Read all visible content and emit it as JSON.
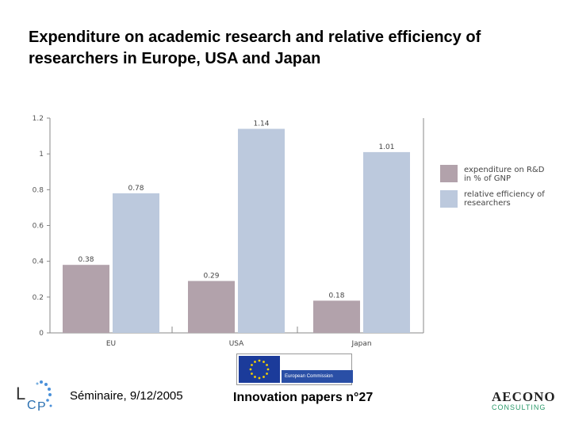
{
  "title": "Expenditure on academic research and relative efficiency of researchers in Europe, USA and Japan",
  "chart_data": {
    "type": "bar",
    "categories": [
      "EU",
      "USA",
      "Japan"
    ],
    "series": [
      {
        "name": "expenditure on R&D in % of GNP",
        "values": [
          0.38,
          0.29,
          0.18
        ],
        "value_labels": [
          "0.38",
          "0.29",
          "0.18"
        ],
        "color": "#b2a2ab"
      },
      {
        "name": "relative efficiency of researchers",
        "values": [
          0.78,
          1.14,
          1.01
        ],
        "value_labels": [
          "0.78",
          "1.14",
          "1.01"
        ],
        "color": "#bcc9dd"
      }
    ],
    "yticks": [
      "0",
      "0.2",
      "0.4",
      "0.6",
      "0.8",
      "1",
      "1.2"
    ],
    "ylim": [
      0,
      1.2
    ],
    "legend_position": "right",
    "legend": {
      "series1": [
        "expenditure on R&D",
        "in % of GNP"
      ],
      "series2": [
        "relative efficiency of",
        "researchers"
      ]
    },
    "grid": false
  },
  "footer": {
    "seminar": "Séminaire, 9/12/2005",
    "papers": "Innovation papers n°27",
    "ec_label": "European Commission",
    "left_logo": "LCP",
    "right_logo_main": "AECONO",
    "right_logo_sub": "CONSULTING"
  },
  "colors": {
    "bar_expenditure": "#b2a2ab",
    "bar_efficiency": "#bcc9dd",
    "eu_blue": "#1b3b9a",
    "eu_yellow": "#f5d000"
  }
}
